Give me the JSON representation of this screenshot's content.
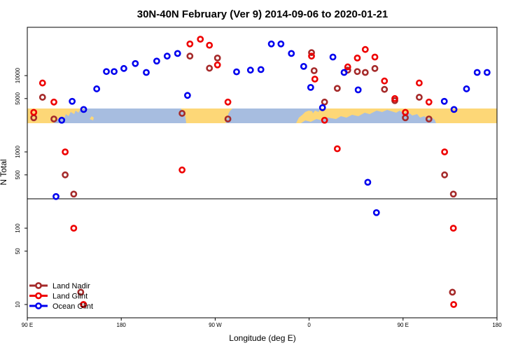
{
  "chart_data": {
    "type": "scatter",
    "title": "30N-40N February (Ver 9)   2014-09-06 to 2020-01-21",
    "xlabel": "Longitude (deg E)",
    "ylabel": "N Total",
    "x_ticks": [
      {
        "value": 90,
        "label": "90 E"
      },
      {
        "value": 180,
        "label": "180"
      },
      {
        "value": 270,
        "label": "90 W"
      },
      {
        "value": 360,
        "label": "0"
      },
      {
        "value": 450,
        "label": "90 E"
      },
      {
        "value": 540,
        "label": "180"
      }
    ],
    "xlim": [
      90,
      540
    ],
    "y_scale": "log (split axis)",
    "y_ticks_lower": [
      {
        "value": 10,
        "label": "10"
      },
      {
        "value": 50,
        "label": "50"
      },
      {
        "value": 100,
        "label": "100"
      }
    ],
    "y_ticks_upper": [
      {
        "value": 500,
        "label": "500"
      },
      {
        "value": 1000,
        "label": "1000"
      },
      {
        "value": 5000,
        "label": "5000"
      },
      {
        "value": 10000,
        "label": "10000"
      }
    ],
    "map_strip": {
      "ocean_color": "#a7bde0",
      "land_color": "#fdd777"
    },
    "legend": {
      "position": "bottom-left"
    },
    "series": [
      {
        "name": "Land Nadir",
        "color": "#a52a2a",
        "points": [
          {
            "x": 96.2,
            "y": 2800
          },
          {
            "x": 104.6,
            "y": 5200
          },
          {
            "x": 115.5,
            "y": 2700
          },
          {
            "x": 126.3,
            "y": 500
          },
          {
            "x": 134.5,
            "y": 280
          },
          {
            "x": 141.2,
            "y": 14.5
          },
          {
            "x": 143.8,
            "y": 10
          },
          {
            "x": 238.3,
            "y": 3200
          },
          {
            "x": 245.8,
            "y": 18000
          },
          {
            "x": 264.5,
            "y": 12500
          },
          {
            "x": 272.2,
            "y": 17000
          },
          {
            "x": 282.2,
            "y": 2700
          },
          {
            "x": 362.3,
            "y": 20000
          },
          {
            "x": 364.8,
            "y": 11600
          },
          {
            "x": 374.8,
            "y": 4500
          },
          {
            "x": 387.0,
            "y": 6800
          },
          {
            "x": 397.0,
            "y": 11800
          },
          {
            "x": 406.2,
            "y": 11300
          },
          {
            "x": 413.8,
            "y": 11000
          },
          {
            "x": 423.0,
            "y": 12400
          },
          {
            "x": 432.2,
            "y": 6600
          },
          {
            "x": 442.1,
            "y": 4700
          },
          {
            "x": 452.2,
            "y": 2800
          },
          {
            "x": 465.5,
            "y": 5200
          },
          {
            "x": 474.8,
            "y": 2700
          },
          {
            "x": 489.8,
            "y": 500
          },
          {
            "x": 498.2,
            "y": 280
          },
          {
            "x": 497.3,
            "y": 14.5
          }
        ]
      },
      {
        "name": "Land Glint",
        "color": "#ee0000",
        "points": [
          {
            "x": 96.2,
            "y": 3300
          },
          {
            "x": 104.6,
            "y": 8000
          },
          {
            "x": 115.5,
            "y": 4500
          },
          {
            "x": 126.3,
            "y": 1000
          },
          {
            "x": 134.5,
            "y": 100
          },
          {
            "x": 143.8,
            "y": 10
          },
          {
            "x": 238.3,
            "y": 580
          },
          {
            "x": 245.8,
            "y": 26000
          },
          {
            "x": 255.8,
            "y": 30000
          },
          {
            "x": 264.5,
            "y": 25000
          },
          {
            "x": 272.2,
            "y": 13800
          },
          {
            "x": 282.2,
            "y": 4500
          },
          {
            "x": 362.3,
            "y": 18000
          },
          {
            "x": 365.5,
            "y": 9000
          },
          {
            "x": 374.8,
            "y": 2600
          },
          {
            "x": 387.0,
            "y": 1100
          },
          {
            "x": 397.0,
            "y": 13000
          },
          {
            "x": 406.2,
            "y": 17000
          },
          {
            "x": 413.8,
            "y": 22000
          },
          {
            "x": 423.0,
            "y": 17500
          },
          {
            "x": 432.2,
            "y": 8500
          },
          {
            "x": 442.1,
            "y": 5000
          },
          {
            "x": 452.2,
            "y": 3300
          },
          {
            "x": 465.5,
            "y": 8000
          },
          {
            "x": 474.8,
            "y": 4500
          },
          {
            "x": 489.8,
            "y": 1000
          },
          {
            "x": 498.2,
            "y": 100
          },
          {
            "x": 498.5,
            "y": 10
          }
        ]
      },
      {
        "name": "Ocean Glint",
        "color": "#0000ee",
        "points": [
          {
            "x": 117.5,
            "y": 260
          },
          {
            "x": 123.0,
            "y": 2600
          },
          {
            "x": 133.0,
            "y": 4600
          },
          {
            "x": 144.0,
            "y": 3600
          },
          {
            "x": 156.5,
            "y": 6700
          },
          {
            "x": 165.8,
            "y": 11300
          },
          {
            "x": 173.2,
            "y": 11300
          },
          {
            "x": 182.5,
            "y": 12400
          },
          {
            "x": 193.5,
            "y": 14400
          },
          {
            "x": 204.0,
            "y": 11000
          },
          {
            "x": 214.0,
            "y": 15500
          },
          {
            "x": 224.0,
            "y": 18000
          },
          {
            "x": 234.0,
            "y": 19500
          },
          {
            "x": 243.5,
            "y": 5500
          },
          {
            "x": 290.5,
            "y": 11200
          },
          {
            "x": 303.8,
            "y": 11800
          },
          {
            "x": 313.8,
            "y": 12000
          },
          {
            "x": 323.8,
            "y": 26000
          },
          {
            "x": 333.0,
            "y": 26000
          },
          {
            "x": 343.0,
            "y": 19500
          },
          {
            "x": 354.8,
            "y": 13200
          },
          {
            "x": 361.5,
            "y": 7000
          },
          {
            "x": 372.8,
            "y": 3800
          },
          {
            "x": 382.8,
            "y": 17500
          },
          {
            "x": 393.5,
            "y": 11000
          },
          {
            "x": 407.0,
            "y": 6500
          },
          {
            "x": 416.2,
            "y": 400
          },
          {
            "x": 424.5,
            "y": 160
          },
          {
            "x": 489.5,
            "y": 4600
          },
          {
            "x": 498.8,
            "y": 3600
          },
          {
            "x": 510.8,
            "y": 6700
          },
          {
            "x": 521.0,
            "y": 11000
          },
          {
            "x": 530.5,
            "y": 11000
          }
        ]
      }
    ]
  }
}
